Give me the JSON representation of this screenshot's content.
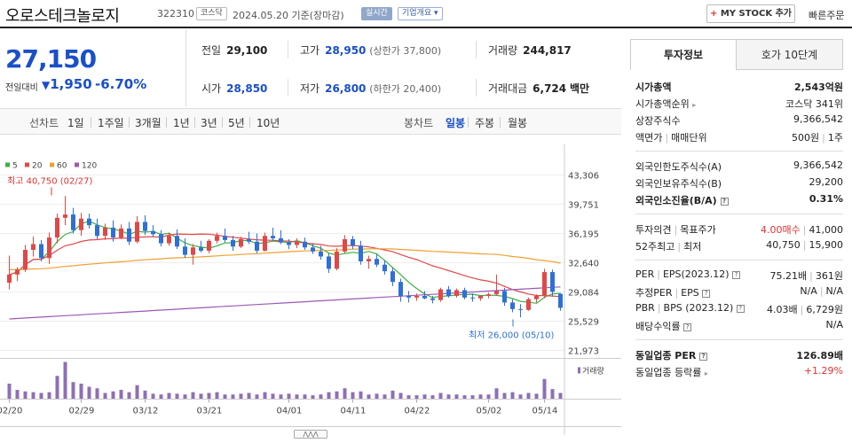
{
  "header": {
    "name": "오로스테크놀로지",
    "code": "322310",
    "market_badge": "코스닥",
    "date": "2024.05.20  기준(장마감)",
    "live_badge": "실시간",
    "info_badge": "기업개요 ▾",
    "mystock_label": "MY STOCK 추가",
    "mystock_plus": "+",
    "quick_order": "빠른주문"
  },
  "price": {
    "current": "27,150",
    "change_label": "전일대비",
    "change_arrow": "▼",
    "change": "1,950",
    "change_pct": "-6.70%"
  },
  "stats": {
    "prev_close": {
      "label": "전일",
      "value": "29,100"
    },
    "high": {
      "label": "고가",
      "value": "28,950",
      "sub": "(상한가 37,800)"
    },
    "volume": {
      "label": "거래량",
      "value": "244,817"
    },
    "open": {
      "label": "시가",
      "value": "28,850"
    },
    "low": {
      "label": "저가",
      "value": "26,800",
      "sub": "(하한가 20,400)"
    },
    "amount": {
      "label": "거래대금",
      "value": "6,724",
      "unit": "백만"
    }
  },
  "period_bar": {
    "line_label": "선차트",
    "line_periods": [
      "1일",
      "1주일",
      "3개월",
      "1년",
      "3년",
      "5년",
      "10년"
    ],
    "candle_label": "봉차트",
    "candle_periods": [
      "일봉",
      "주봉",
      "월봉"
    ],
    "active_candle": "일봉"
  },
  "chart_data": {
    "type": "candlestick",
    "ma_legend": [
      {
        "name": "5",
        "color": "#3cb043"
      },
      {
        "name": "20",
        "color": "#e04848"
      },
      {
        "name": "60",
        "color": "#f0a030"
      },
      {
        "name": "120",
        "color": "#9b59b6"
      }
    ],
    "y_ticks": [
      "43,306",
      "39,751",
      "36,195",
      "32,640",
      "29,084",
      "25,529",
      "21,973"
    ],
    "y_min": 21973,
    "y_max": 43306,
    "x_ticks": [
      "02/20",
      "02/29",
      "03/12",
      "03/21",
      "04/01",
      "04/11",
      "04/22",
      "05/02",
      "05/14"
    ],
    "high_annotation": "최고 40,750 (02/27)",
    "low_annotation": "최저 26,000 (05/10)",
    "volume_label": "거래량",
    "up_color": "#e04848",
    "down_color": "#2f6fd6",
    "candles": [
      [
        30200,
        33500,
        29400,
        31200
      ],
      [
        31200,
        32100,
        30400,
        31800
      ],
      [
        31800,
        34800,
        31500,
        34200
      ],
      [
        34200,
        35800,
        33400,
        34900
      ],
      [
        34900,
        35400,
        32800,
        33200
      ],
      [
        33200,
        36300,
        32500,
        35700
      ],
      [
        35700,
        38600,
        35000,
        38100
      ],
      [
        38100,
        40750,
        37200,
        38500
      ],
      [
        38500,
        39300,
        36200,
        36600
      ],
      [
        36600,
        38700,
        35900,
        38000
      ],
      [
        38000,
        38600,
        36800,
        37200
      ],
      [
        37200,
        38000,
        35500,
        35900
      ],
      [
        35900,
        37400,
        35400,
        36900
      ],
      [
        36900,
        37800,
        35200,
        35700
      ],
      [
        35700,
        37300,
        35500,
        36800
      ],
      [
        36800,
        37600,
        34800,
        35200
      ],
      [
        35200,
        38300,
        35000,
        37600
      ],
      [
        37600,
        38400,
        36000,
        36500
      ],
      [
        36500,
        37200,
        35800,
        36100
      ],
      [
        36100,
        36600,
        34600,
        35000
      ],
      [
        35000,
        36300,
        34700,
        35900
      ],
      [
        35900,
        36700,
        34300,
        34600
      ],
      [
        34600,
        35600,
        33200,
        33600
      ],
      [
        33600,
        34900,
        32400,
        34500
      ],
      [
        34500,
        35300,
        33900,
        34100
      ],
      [
        34100,
        35500,
        33800,
        35300
      ],
      [
        35300,
        36300,
        35000,
        35900
      ],
      [
        35900,
        36800,
        35100,
        35400
      ],
      [
        35400,
        35900,
        34100,
        34600
      ],
      [
        34600,
        35800,
        34400,
        35500
      ],
      [
        35500,
        36400,
        34900,
        35200
      ],
      [
        35200,
        36200,
        33800,
        34100
      ],
      [
        34100,
        36300,
        34000,
        35900
      ],
      [
        35900,
        36900,
        35300,
        35600
      ],
      [
        35600,
        36600,
        34900,
        35100
      ],
      [
        35100,
        35500,
        34300,
        34800
      ],
      [
        34800,
        35600,
        34400,
        35200
      ],
      [
        35200,
        35700,
        34200,
        34500
      ],
      [
        34500,
        35000,
        33700,
        34000
      ],
      [
        34000,
        34700,
        33000,
        33400
      ],
      [
        33400,
        33800,
        31400,
        31900
      ],
      [
        31900,
        34400,
        31700,
        34000
      ],
      [
        34000,
        36000,
        33800,
        35500
      ],
      [
        35500,
        35900,
        34300,
        34700
      ],
      [
        34700,
        35300,
        32400,
        32800
      ],
      [
        32800,
        33500,
        31900,
        33100
      ],
      [
        33100,
        33700,
        32100,
        32400
      ],
      [
        32400,
        32900,
        31200,
        31600
      ],
      [
        31600,
        32000,
        29800,
        30300
      ],
      [
        30300,
        30700,
        27900,
        28600
      ],
      [
        28600,
        29200,
        27800,
        28400
      ],
      [
        28400,
        28900,
        28000,
        28600
      ],
      [
        28600,
        29200,
        28200,
        28300
      ],
      [
        28300,
        28600,
        27700,
        28100
      ],
      [
        28100,
        29600,
        27900,
        29400
      ],
      [
        29400,
        29800,
        28400,
        28600
      ],
      [
        28600,
        29500,
        28400,
        29300
      ],
      [
        29300,
        29600,
        28200,
        28400
      ],
      [
        28400,
        28900,
        27900,
        28300
      ],
      [
        28300,
        28700,
        28000,
        28600
      ],
      [
        28600,
        29000,
        28300,
        28800
      ],
      [
        28800,
        31200,
        28600,
        29200
      ],
      [
        29200,
        29600,
        27400,
        27800
      ],
      [
        27800,
        28200,
        26600,
        27000
      ],
      [
        27000,
        27600,
        26000,
        26900
      ],
      [
        26900,
        28400,
        26800,
        28200
      ],
      [
        28200,
        28800,
        27800,
        28600
      ],
      [
        28600,
        31900,
        28300,
        31500
      ],
      [
        31500,
        31800,
        28500,
        29100
      ],
      [
        28850,
        28950,
        26800,
        27150
      ]
    ],
    "volumes": [
      20,
      12,
      10,
      9,
      8,
      9,
      30,
      48,
      22,
      20,
      16,
      14,
      8,
      10,
      12,
      9,
      18,
      11,
      7,
      6,
      8,
      7,
      6,
      9,
      7,
      8,
      9,
      6,
      6,
      7,
      8,
      6,
      9,
      7,
      6,
      7,
      6,
      6,
      5,
      6,
      9,
      10,
      14,
      9,
      10,
      6,
      7,
      6,
      11,
      8,
      5,
      5,
      6,
      5,
      8,
      6,
      6,
      5,
      5,
      6,
      6,
      14,
      8,
      9,
      6,
      8,
      7,
      26,
      13,
      8
    ]
  },
  "panel": {
    "tab_active": "투자정보",
    "tab_other": "호가 10단계",
    "market_cap": {
      "label": "시가총액",
      "value": "2,543억원"
    },
    "market_cap_rank": {
      "label": "시가총액순위",
      "value": "코스닥 341위"
    },
    "shares": {
      "label": "상장주식수",
      "value": "9,366,542"
    },
    "par_label_1": "액면가",
    "par_label_2": "매매단위",
    "par_value_1": "500원",
    "par_value_2": "1주",
    "foreign_limit": {
      "label": "외국인한도주식수(A)",
      "value": "9,366,542"
    },
    "foreign_hold": {
      "label": "외국인보유주식수(B)",
      "value": "29,200"
    },
    "foreign_ratio": {
      "label": "외국인소진율(B/A)",
      "value": "0.31%"
    },
    "opinion_label_1": "투자의견",
    "opinion_label_2": "목표주가",
    "opinion_value_1": "4.00매수",
    "opinion_value_2": "41,000",
    "week52_label_1": "52주최고",
    "week52_label_2": "최저",
    "week52_value_1": "40,750",
    "week52_value_2": "15,900",
    "per_label_1": "PER",
    "per_label_2": "EPS(2023.12)",
    "per_value_1": "75.21배",
    "per_value_2": "361원",
    "est_label_1": "추정PER",
    "est_label_2": "EPS",
    "est_value_1": "N/A",
    "est_value_2": "N/A",
    "pbr_label_1": "PBR",
    "pbr_label_2": "BPS (2023.12)",
    "pbr_value_1": "4.03배",
    "pbr_value_2": "6,729원",
    "dividend": {
      "label": "배당수익률",
      "value": "N/A"
    },
    "sector_per": {
      "label": "동일업종 PER",
      "value": "126.89배"
    },
    "sector_rate": {
      "label": "동일업종 등락률",
      "value": "+1.29%"
    }
  }
}
